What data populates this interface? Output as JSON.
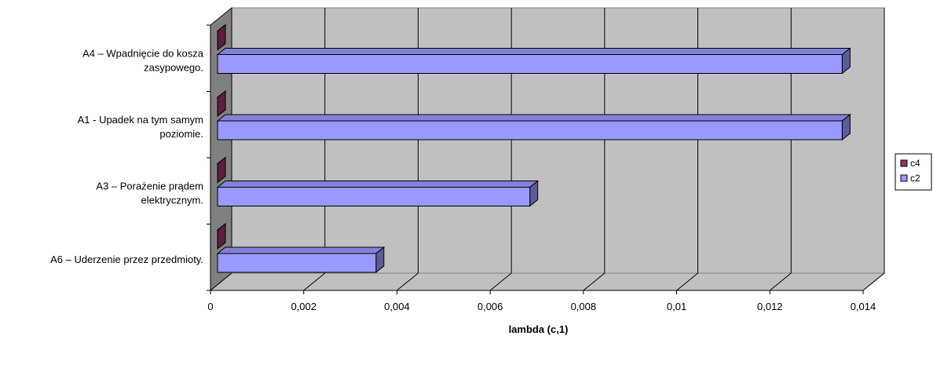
{
  "chart_data": {
    "type": "bar",
    "orientation": "horizontal",
    "style": "3d",
    "categories": [
      "A6 – Uderzenie przez przedmioty.",
      "A3 – Porażenie prądem elektrycznym.",
      "A1 - Upadek na tym samym poziomie.",
      "A4 – Wpadnięcie do kosza zasypowego."
    ],
    "category_lines": [
      [
        "A6 – Uderzenie przez przedmioty."
      ],
      [
        "A3 – Porażenie prądem",
        "elektrycznym."
      ],
      [
        "A1 - Upadek na tym samym",
        "poziomie."
      ],
      [
        "A4 – Wpadnięcie do kosza",
        "zasypowego."
      ]
    ],
    "series": [
      {
        "name": "c4",
        "values": [
          0,
          0,
          0,
          0
        ],
        "color": "#993366"
      },
      {
        "name": "c2",
        "values": [
          0.0034,
          0.0067,
          0.0134,
          0.0134
        ],
        "color": "#9999ff"
      }
    ],
    "xlabel": "lambda (c,1)",
    "ylabel": "",
    "xlim": [
      0,
      0.014
    ],
    "xticks": [
      0,
      0.002,
      0.004,
      0.006,
      0.008,
      0.01,
      0.012,
      0.014
    ],
    "xtick_labels": [
      "0",
      "0,002",
      "0,004",
      "0,006",
      "0,008",
      "0,01",
      "0,012",
      "0,014"
    ],
    "grid": true,
    "legend_position": "right",
    "wall_color": "#c0c0c0",
    "side_wall_color": "#808080",
    "floor_color": "#c0c0c0"
  }
}
